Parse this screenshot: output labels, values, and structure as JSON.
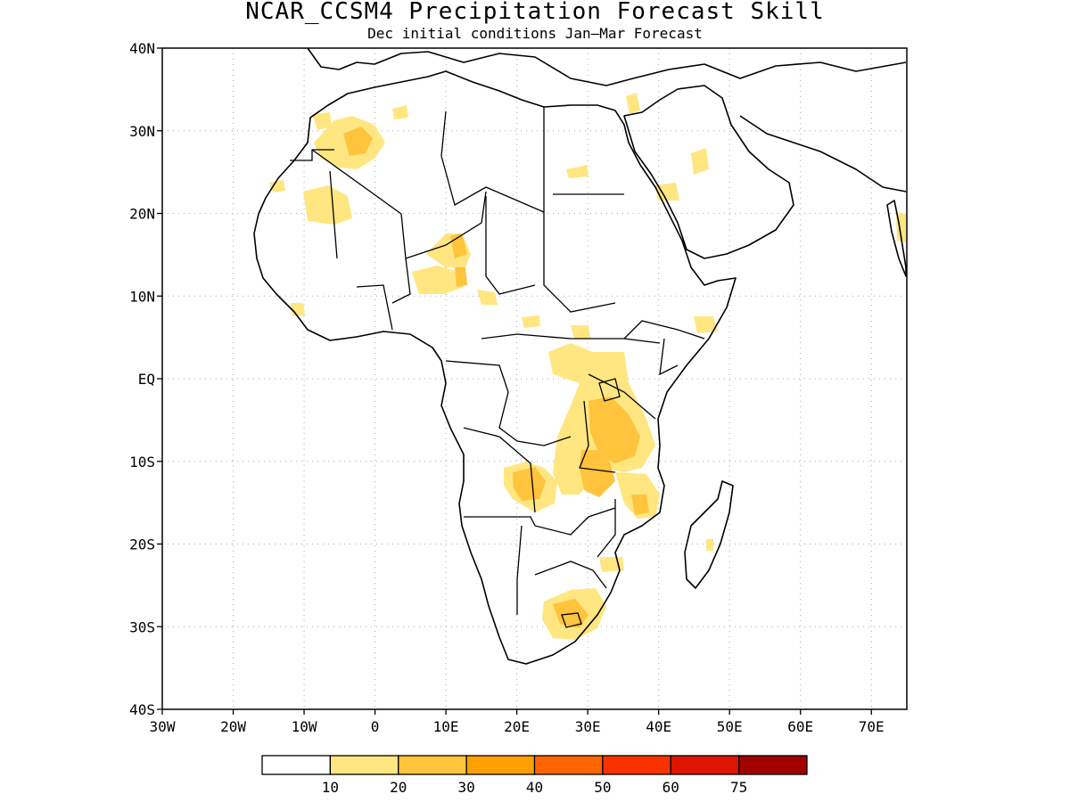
{
  "title": "NCAR_CCSM4 Precipitation Forecast Skill",
  "subtitle": "Dec initial conditions  Jan–Mar Forecast",
  "map": {
    "region": "Africa",
    "lon_range": [
      -30,
      75
    ],
    "lat_range": [
      -40,
      40
    ],
    "grid": "dotted",
    "lat_labels": [
      "40N",
      "30N",
      "20N",
      "10N",
      "EQ",
      "10S",
      "20S",
      "30S",
      "40S"
    ],
    "lon_labels": [
      "30W",
      "20W",
      "10W",
      "0",
      "10E",
      "20E",
      "30E",
      "40E",
      "50E",
      "60E",
      "70E"
    ]
  },
  "colorbar": {
    "labels": [
      "10",
      "20",
      "30",
      "40",
      "50",
      "60",
      "75"
    ],
    "colors": [
      "#ffffff",
      "#ffe680",
      "#ffc33c",
      "#ffa000",
      "#ff6400",
      "#fa3200",
      "#dc1400",
      "#a00000"
    ]
  },
  "colors": {
    "land_outline": "#000000",
    "ocean": "#ffffff",
    "skill_10_20": "#ffe680",
    "skill_20_30": "#ffc33c"
  }
}
